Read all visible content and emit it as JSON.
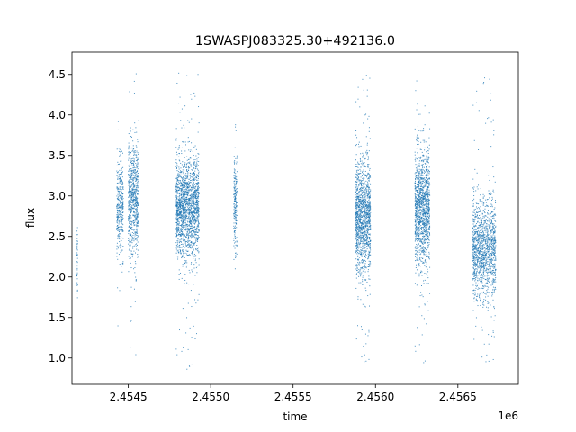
{
  "chart_data": {
    "type": "scatter",
    "title": "1SWASPJ083325.30+492136.0",
    "xlabel": "time",
    "ylabel": "flux",
    "x_offset_label": "1e6",
    "xlim": [
      2454158,
      2456867
    ],
    "ylim": [
      0.675,
      4.775
    ],
    "x_ticks": [
      {
        "value": 2454500,
        "label": "2.4545"
      },
      {
        "value": 2455000,
        "label": "2.4550"
      },
      {
        "value": 2455500,
        "label": "2.4555"
      },
      {
        "value": 2456000,
        "label": "2.4560"
      },
      {
        "value": 2456500,
        "label": "2.4565"
      }
    ],
    "y_ticks": [
      {
        "value": 1.0,
        "label": "1.0"
      },
      {
        "value": 1.5,
        "label": "1.5"
      },
      {
        "value": 2.0,
        "label": "2.0"
      },
      {
        "value": 2.5,
        "label": "2.5"
      },
      {
        "value": 3.0,
        "label": "3.0"
      },
      {
        "value": 3.5,
        "label": "3.5"
      },
      {
        "value": 4.0,
        "label": "4.0"
      },
      {
        "value": 4.5,
        "label": "4.5"
      }
    ],
    "series_color": "#1f77b4",
    "grid": false,
    "legend": "none",
    "observing_seasons": [
      {
        "t_start": 2454190,
        "t_end": 2454190,
        "flux_center": 2.2,
        "flux_spread": 0.25,
        "flux_min": 1.6,
        "flux_max": 2.7,
        "points": 40
      },
      {
        "t_start": 2454430,
        "t_end": 2454470,
        "flux_center": 2.85,
        "flux_spread": 0.3,
        "flux_min": 1.3,
        "flux_max": 4.0,
        "points": 350
      },
      {
        "t_start": 2454500,
        "t_end": 2454560,
        "flux_center": 2.95,
        "flux_spread": 0.35,
        "flux_min": 0.9,
        "flux_max": 4.6,
        "points": 700
      },
      {
        "t_start": 2454790,
        "t_end": 2454930,
        "flux_center": 2.85,
        "flux_spread": 0.3,
        "flux_min": 0.85,
        "flux_max": 4.6,
        "points": 1800
      },
      {
        "t_start": 2455140,
        "t_end": 2455160,
        "flux_center": 2.9,
        "flux_spread": 0.3,
        "flux_min": 2.1,
        "flux_max": 3.9,
        "points": 200
      },
      {
        "t_start": 2455880,
        "t_end": 2455970,
        "flux_center": 2.75,
        "flux_spread": 0.35,
        "flux_min": 0.9,
        "flux_max": 4.55,
        "points": 1300
      },
      {
        "t_start": 2456240,
        "t_end": 2456330,
        "flux_center": 2.85,
        "flux_spread": 0.35,
        "flux_min": 0.9,
        "flux_max": 4.5,
        "points": 1300
      },
      {
        "t_start": 2456590,
        "t_end": 2456730,
        "flux_center": 2.35,
        "flux_spread": 0.3,
        "flux_min": 0.9,
        "flux_max": 4.5,
        "points": 1300
      }
    ]
  }
}
